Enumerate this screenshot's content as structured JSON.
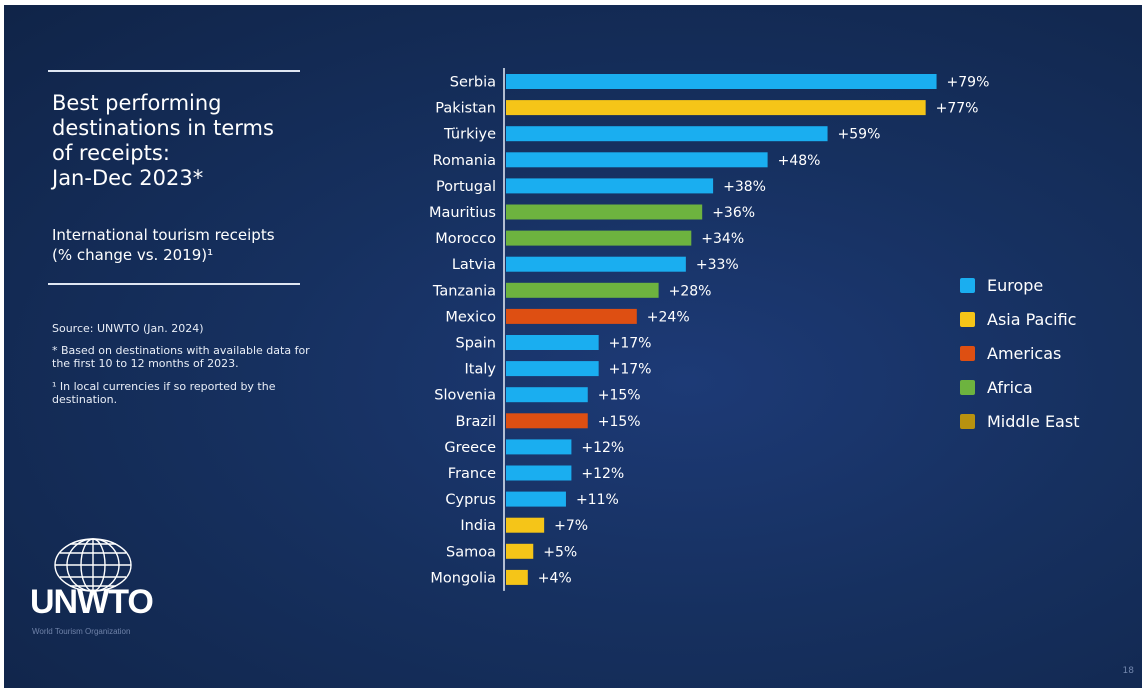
{
  "title": "Best performing\ndestinations in terms\nof receipts:\nJan-Dec 2023*",
  "subtitle": "International tourism receipts\n(% change vs. 2019)¹",
  "notes": {
    "source": "Source: UNWTO (Jan. 2024)",
    "footnote1": "* Based on destinations with available data for the first 10 to 12 months of 2023.",
    "footnote2": "¹ In local currencies if so reported by the destination."
  },
  "logo": {
    "text": "UNWTO",
    "subtext": "World Tourism Organization",
    "icon": "globe-icon"
  },
  "page_number": "18",
  "colors": {
    "Europe": "#1aaef0",
    "Asia Pacific": "#f5c518",
    "Americas": "#de4f12",
    "Africa": "#6db33f",
    "Middle East": "#b8920f",
    "background": "#16305f"
  },
  "legend": [
    "Europe",
    "Asia Pacific",
    "Americas",
    "Africa",
    "Middle East"
  ],
  "chart_data": {
    "type": "bar",
    "orientation": "horizontal",
    "categories": [
      "Serbia",
      "Pakistan",
      "Türkiye",
      "Romania",
      "Portugal",
      "Mauritius",
      "Morocco",
      "Latvia",
      "Tanzania",
      "Mexico",
      "Spain",
      "Italy",
      "Slovenia",
      "Brazil",
      "Greece",
      "France",
      "Cyprus",
      "India",
      "Samoa",
      "Mongolia"
    ],
    "values": [
      79,
      77,
      59,
      48,
      38,
      36,
      34,
      33,
      28,
      24,
      17,
      17,
      15,
      15,
      12,
      12,
      11,
      7,
      5,
      4
    ],
    "labels": [
      "+79%",
      "+77%",
      "+59%",
      "+48%",
      "+38%",
      "+36%",
      "+34%",
      "+33%",
      "+28%",
      "+24%",
      "+17%",
      "+17%",
      "+15%",
      "+15%",
      "+12%",
      "+12%",
      "+11%",
      "+7%",
      "+5%",
      "+4%"
    ],
    "regions": [
      "Europe",
      "Asia Pacific",
      "Europe",
      "Europe",
      "Europe",
      "Africa",
      "Africa",
      "Europe",
      "Africa",
      "Americas",
      "Europe",
      "Europe",
      "Europe",
      "Americas",
      "Europe",
      "Europe",
      "Europe",
      "Asia Pacific",
      "Asia Pacific",
      "Asia Pacific"
    ],
    "legend_position": "right",
    "grid": false
  }
}
